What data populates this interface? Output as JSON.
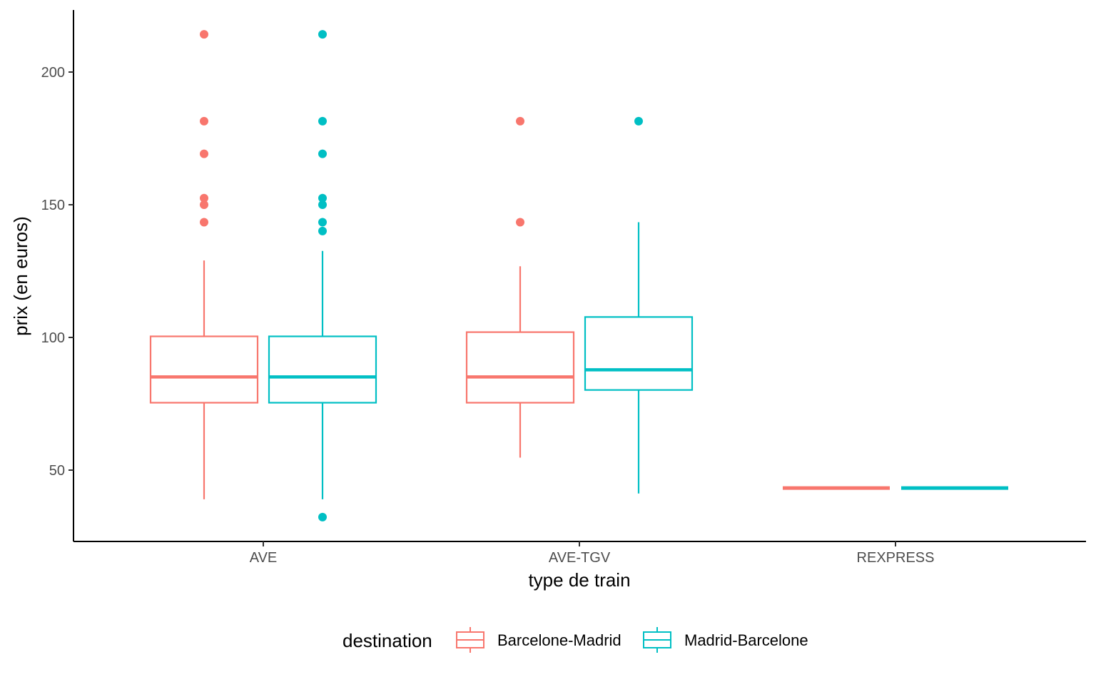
{
  "chart_data": {
    "type": "boxplot",
    "xlabel": "type de train",
    "ylabel": "prix (en euros)",
    "ylim": [
      25,
      222
    ],
    "yticks": [
      50,
      100,
      150,
      200
    ],
    "categories": [
      "AVE",
      "AVE-TGV",
      "REXPRESS"
    ],
    "legend": {
      "title": "destination",
      "position": "bottom"
    },
    "grid": false,
    "series": [
      {
        "name": "Barcelone-Madrid",
        "color": "#F8766D",
        "boxes": [
          {
            "category": "AVE",
            "min": 39,
            "q1": 75.4,
            "median": 85.1,
            "q3": 100.4,
            "max": 129,
            "outliers": [
              143.4,
              150,
              152.5,
              169.2,
              181.5,
              214.2
            ]
          },
          {
            "category": "AVE-TGV",
            "min": 54.7,
            "q1": 75.4,
            "median": 85.1,
            "q3": 102,
            "max": 126.8,
            "outliers": [
              143.4,
              181.5
            ]
          },
          {
            "category": "REXPRESS",
            "min": 43.25,
            "q1": 43.25,
            "median": 43.25,
            "q3": 43.25,
            "max": 43.25,
            "outliers": []
          }
        ]
      },
      {
        "name": "Madrid-Barcelone",
        "color": "#00BFC4",
        "boxes": [
          {
            "category": "AVE",
            "min": 39,
            "q1": 75.4,
            "median": 85.1,
            "q3": 100.4,
            "max": 132.6,
            "outliers": [
              32.3,
              140.1,
              143.4,
              150,
              152.5,
              169.2,
              181.5,
              214.2
            ]
          },
          {
            "category": "AVE-TGV",
            "min": 41.2,
            "q1": 80.2,
            "median": 87.8,
            "q3": 107.7,
            "max": 143.4,
            "outliers": [
              181.5
            ]
          },
          {
            "category": "REXPRESS",
            "min": 43.25,
            "q1": 43.25,
            "median": 43.25,
            "q3": 43.25,
            "max": 43.25,
            "outliers": []
          }
        ]
      }
    ]
  }
}
